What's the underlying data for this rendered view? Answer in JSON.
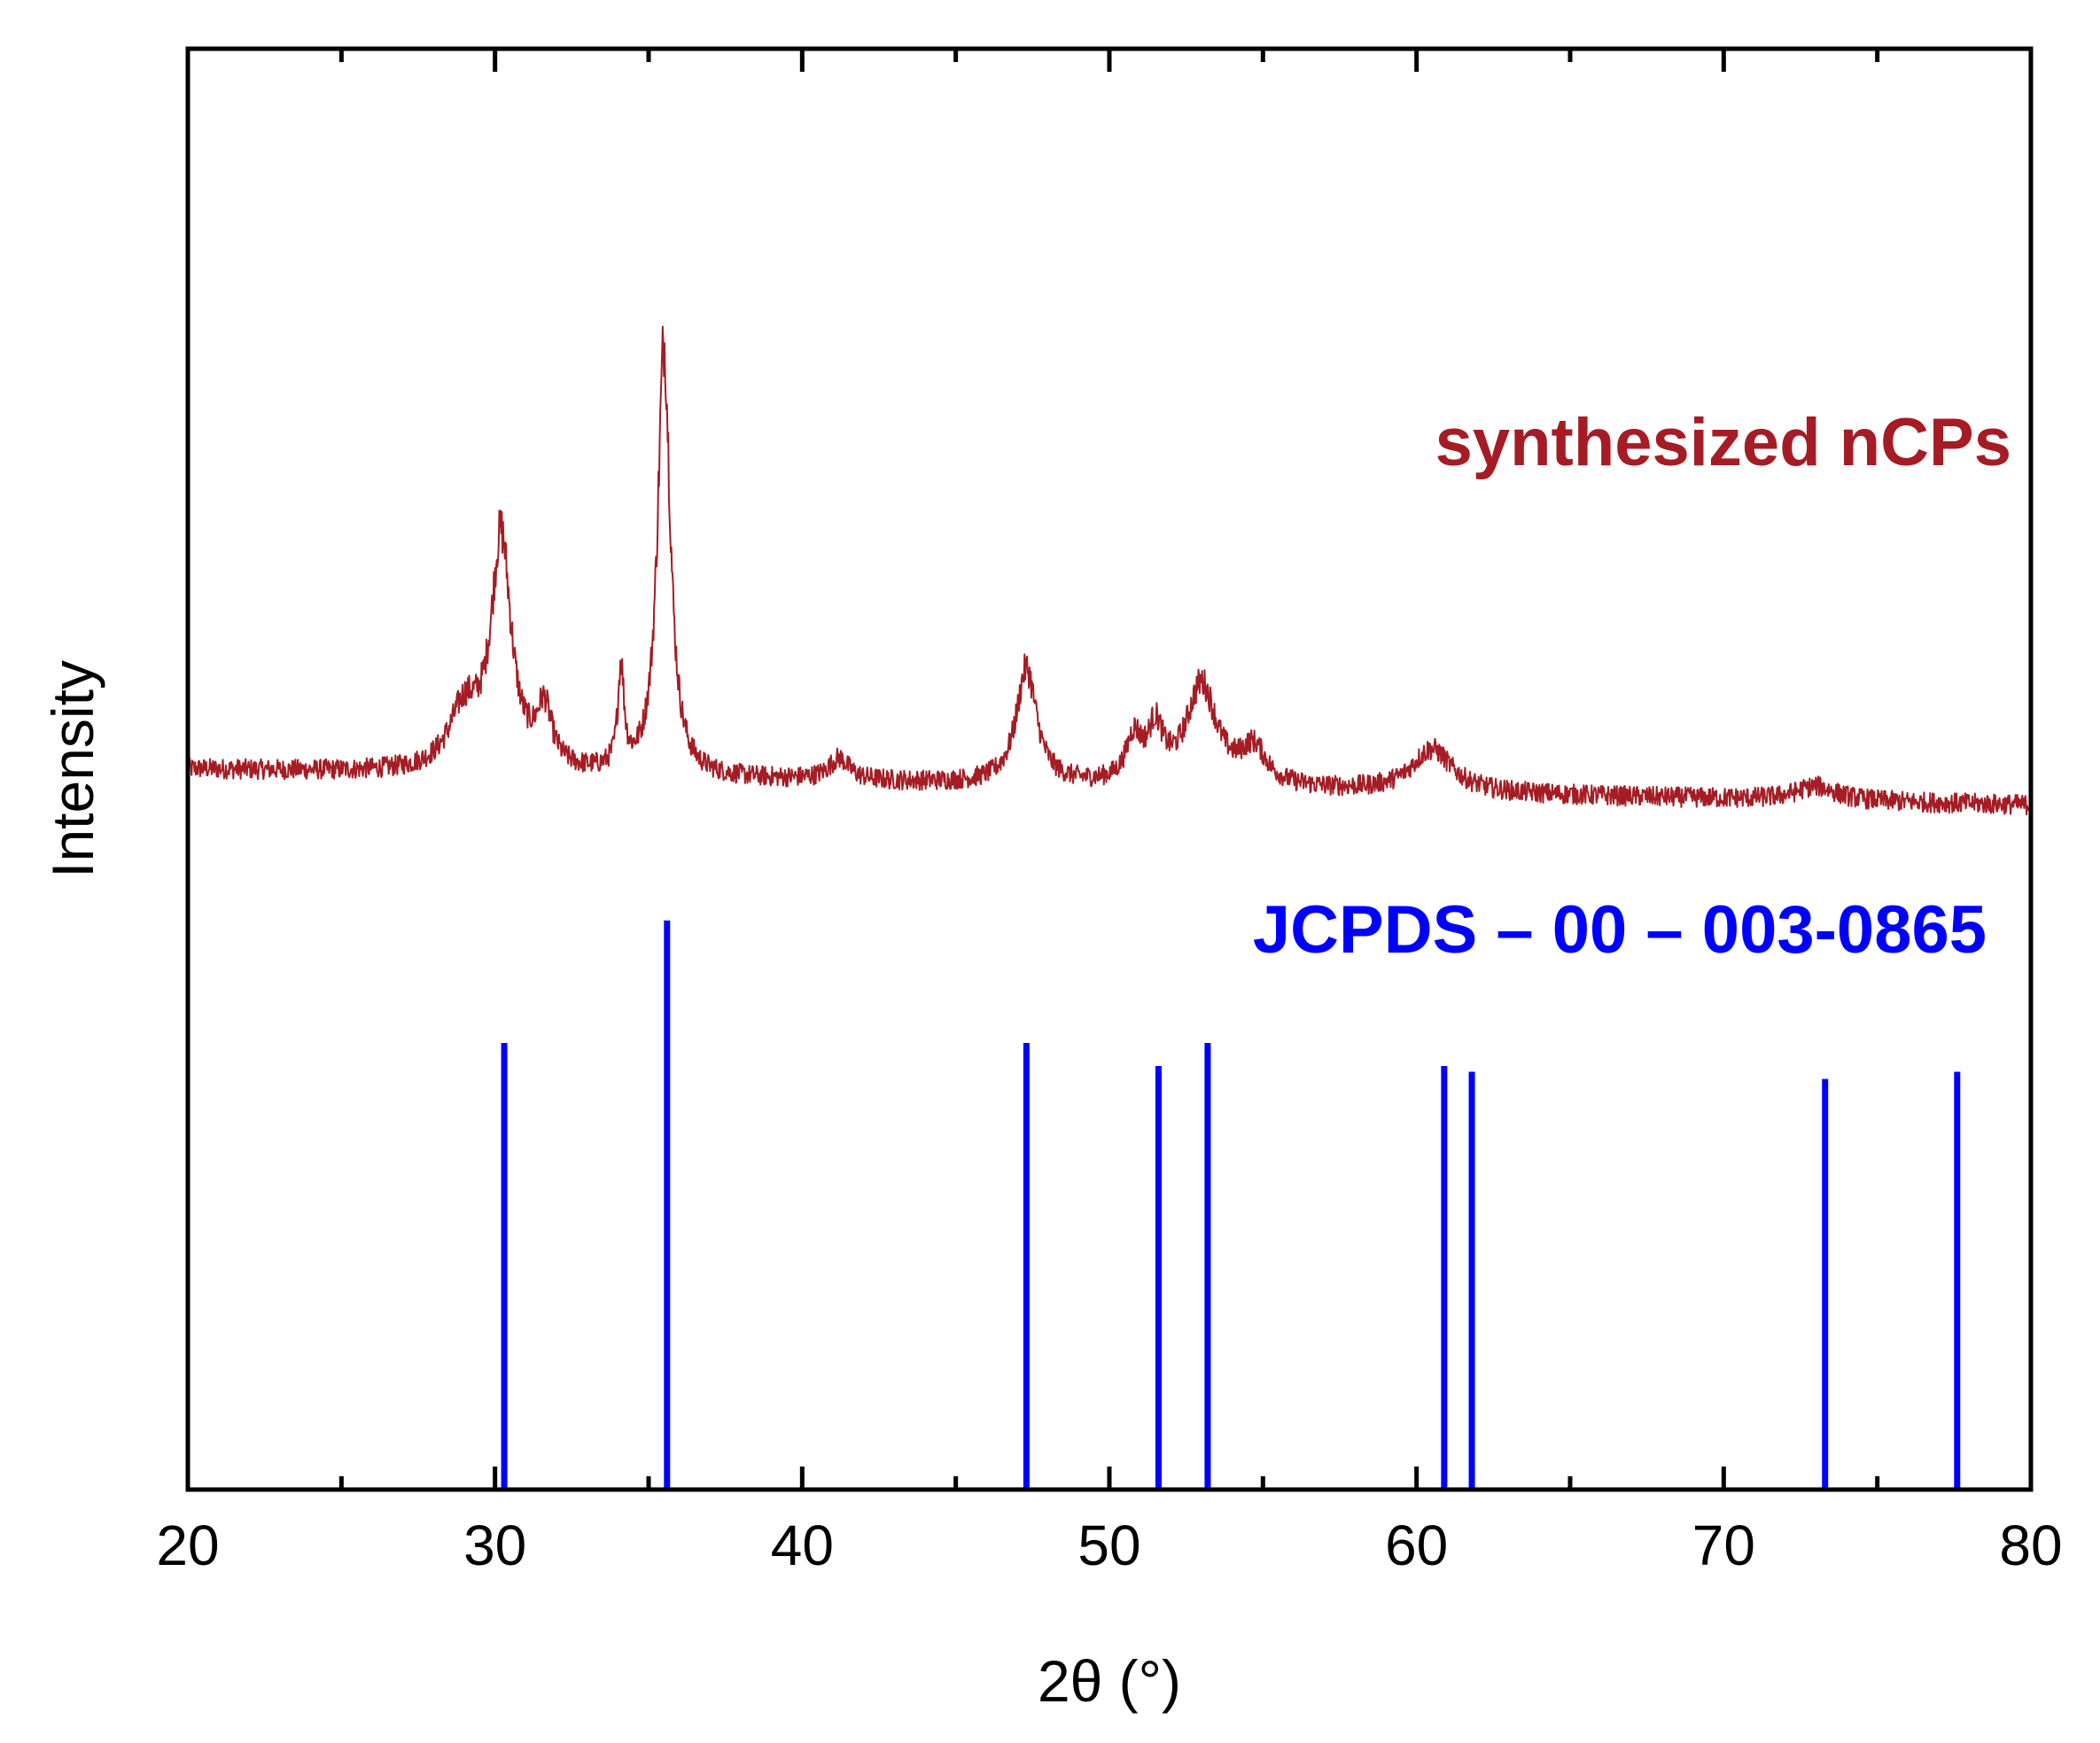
{
  "chart_data": {
    "type": "line",
    "xlabel": "2θ (°)",
    "ylabel": "Intensity",
    "xlim": [
      20,
      80
    ],
    "x_ticks": [
      20,
      30,
      40,
      50,
      60,
      70,
      80
    ],
    "y_ticks_shown": false,
    "grid": false,
    "colors": {
      "measured": "#a51c24",
      "reference": "#0000ff"
    },
    "series": [
      {
        "name": "synthesized nCPs",
        "style": "noisy-line",
        "baseline_start": 0.5,
        "baseline_end": 0.475,
        "peaks": [
          {
            "x": 29.0,
            "height": 0.04,
            "width": 0.6
          },
          {
            "x": 30.2,
            "height": 0.16,
            "width": 0.4
          },
          {
            "x": 31.6,
            "height": 0.04,
            "width": 0.3
          },
          {
            "x": 34.1,
            "height": 0.07,
            "width": 0.12
          },
          {
            "x": 35.5,
            "height": 0.3,
            "width": 0.25
          },
          {
            "x": 41.2,
            "height": 0.015,
            "width": 0.4
          },
          {
            "x": 47.3,
            "height": 0.08,
            "width": 0.4
          },
          {
            "x": 50.8,
            "height": 0.03,
            "width": 0.3
          },
          {
            "x": 51.5,
            "height": 0.035,
            "width": 0.3
          },
          {
            "x": 53.0,
            "height": 0.07,
            "width": 0.6
          },
          {
            "x": 54.7,
            "height": 0.025,
            "width": 0.5
          },
          {
            "x": 60.5,
            "height": 0.03,
            "width": 0.8
          },
          {
            "x": 73.0,
            "height": 0.01,
            "width": 0.8
          }
        ]
      },
      {
        "name": "JCPDS – 00 – 003-0865",
        "style": "stick",
        "x": [
          30.3,
          35.6,
          47.3,
          51.6,
          53.2,
          60.9,
          61.8,
          73.3,
          77.6
        ],
        "y": [
          0.31,
          0.395,
          0.31,
          0.294,
          0.31,
          0.294,
          0.29,
          0.285,
          0.29
        ]
      }
    ]
  }
}
